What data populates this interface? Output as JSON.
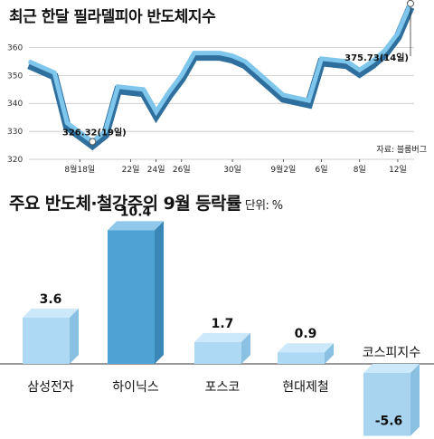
{
  "chart_data": [
    {
      "type": "line",
      "title": "최근 한달 필라델피아 반도체지수",
      "source": "자료: 블룸버그",
      "ylim": [
        320,
        365
      ],
      "yticks": [
        320,
        330,
        340,
        350,
        360
      ],
      "xticks": [
        {
          "label": "8월18일",
          "x": 4
        },
        {
          "label": "22일",
          "x": 8
        },
        {
          "label": "24일",
          "x": 10
        },
        {
          "label": "26일",
          "x": 12
        },
        {
          "label": "30일",
          "x": 16
        },
        {
          "label": "9월2일",
          "x": 20
        },
        {
          "label": "6일",
          "x": 23
        },
        {
          "label": "8일",
          "x": 26
        },
        {
          "label": "12일",
          "x": 29
        }
      ],
      "x": [
        0,
        2,
        3,
        5,
        6,
        7,
        9,
        10,
        11,
        12,
        13,
        15,
        16,
        17,
        19,
        20,
        22,
        23,
        25,
        26,
        27,
        28,
        29,
        30
      ],
      "values": [
        355,
        351,
        333,
        326.32,
        330,
        346,
        345,
        337,
        344,
        350,
        358,
        358,
        357,
        355,
        347,
        343,
        341,
        356,
        355,
        352,
        355,
        359,
        365,
        375.73
      ],
      "annotations": [
        {
          "text": "326.32(19일)",
          "point_index": 3
        },
        {
          "text": "375.73(14일)",
          "point_index": 23
        }
      ]
    },
    {
      "type": "bar",
      "title": "주요 반도체·철강주의 9월 등락률",
      "unit": "단위: %",
      "categories": [
        "삼성전자",
        "하이닉스",
        "포스코",
        "현대제철",
        "코스피지수"
      ],
      "values": [
        3.6,
        10.4,
        1.7,
        0.9,
        -5.6
      ],
      "value_labels": [
        "3.6",
        "10.4",
        "1.7",
        "0.9",
        "-5.6"
      ],
      "highlight_index": 1
    }
  ],
  "colors": {
    "line_dark": "#2f6f9e",
    "line_light": "#7fc6ec",
    "bar_light": "#aed9f4",
    "bar_light_side": "#8ac0e2",
    "bar_light_top": "#cbe9fa",
    "bar_dark": "#4fa3d4",
    "bar_dark_side": "#3a86b6",
    "bar_dark_top": "#8fc8ea",
    "bar_neg": "#a8d4ef",
    "grid": "#bdbdbd",
    "axis": "#333333"
  }
}
